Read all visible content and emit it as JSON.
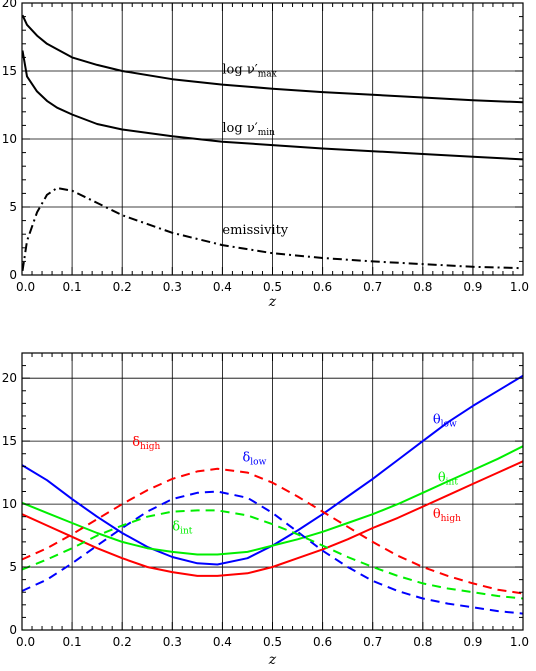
{
  "chart_data": [
    {
      "type": "line",
      "xlabel": "z",
      "xlim": [
        0.0,
        1.0
      ],
      "ylim": [
        0,
        20
      ],
      "xticks": [
        "0.0",
        "0.1",
        "0.2",
        "0.3",
        "0.4",
        "0.5",
        "0.6",
        "0.7",
        "0.8",
        "0.9",
        "1.0"
      ],
      "yticks": [
        "0",
        "5",
        "10",
        "15",
        "20"
      ],
      "grid": true,
      "x": [
        0.001,
        0.01,
        0.03,
        0.05,
        0.07,
        0.1,
        0.15,
        0.2,
        0.3,
        0.4,
        0.5,
        0.6,
        0.7,
        0.8,
        0.9,
        1.0
      ],
      "series": [
        {
          "name": "log ν′max",
          "label_main": "log ν′",
          "label_sub": "max",
          "label_x": 0.4,
          "label_y": 14.8,
          "color": "#000000",
          "dash": "solid",
          "values": [
            19.1,
            18.4,
            17.6,
            17.0,
            16.6,
            16.0,
            15.45,
            15.0,
            14.4,
            14.0,
            13.7,
            13.45,
            13.25,
            13.05,
            12.85,
            12.7
          ]
        },
        {
          "name": "log ν′min",
          "label_main": "log ν′",
          "label_sub": "min",
          "label_x": 0.4,
          "label_y": 10.5,
          "color": "#000000",
          "dash": "solid",
          "values": [
            16.5,
            14.6,
            13.5,
            12.8,
            12.3,
            11.8,
            11.1,
            10.7,
            10.2,
            9.8,
            9.55,
            9.3,
            9.1,
            8.9,
            8.7,
            8.5
          ]
        },
        {
          "name": "emissivity",
          "label_main": "emissivity",
          "label_sub": "",
          "label_x": 0.4,
          "label_y": 3.0,
          "color": "#000000",
          "dash": "dashdot",
          "values": [
            0.3,
            2.5,
            4.6,
            5.9,
            6.4,
            6.2,
            5.3,
            4.4,
            3.1,
            2.2,
            1.6,
            1.25,
            1.0,
            0.8,
            0.6,
            0.5
          ]
        }
      ]
    },
    {
      "type": "line",
      "xlabel": "z",
      "xlim": [
        0.0,
        1.0
      ],
      "ylim": [
        0,
        22
      ],
      "xticks": [
        "0.0",
        "0.1",
        "0.2",
        "0.3",
        "0.4",
        "0.5",
        "0.6",
        "0.7",
        "0.8",
        "0.9",
        "1.0"
      ],
      "yticks": [
        "0",
        "5",
        "10",
        "15",
        "20"
      ],
      "grid": true,
      "x": [
        0.0,
        0.05,
        0.1,
        0.15,
        0.2,
        0.25,
        0.3,
        0.35,
        0.39,
        0.45,
        0.5,
        0.55,
        0.6,
        0.65,
        0.7,
        0.75,
        0.8,
        0.85,
        0.9,
        0.95,
        1.0
      ],
      "series": [
        {
          "name": "θlow",
          "label_main": "θ",
          "label_sub": "low",
          "label_x": 0.82,
          "label_y": 16.4,
          "color": "#0000ff",
          "dash": "solid",
          "values": [
            13.1,
            11.9,
            10.4,
            9.0,
            7.7,
            6.6,
            5.8,
            5.3,
            5.2,
            5.7,
            6.7,
            7.9,
            9.2,
            10.6,
            12.0,
            13.5,
            15.0,
            16.5,
            17.8,
            19.0,
            20.2
          ]
        },
        {
          "name": "θint",
          "label_main": "θ",
          "label_sub": "int",
          "label_x": 0.83,
          "label_y": 11.8,
          "color": "#00ee00",
          "dash": "solid",
          "values": [
            10.1,
            9.3,
            8.5,
            7.7,
            7.0,
            6.5,
            6.2,
            6.0,
            6.0,
            6.2,
            6.7,
            7.2,
            7.8,
            8.5,
            9.2,
            10.0,
            10.9,
            11.8,
            12.7,
            13.6,
            14.6
          ]
        },
        {
          "name": "θhigh",
          "label_main": "θ",
          "label_sub": "high",
          "label_x": 0.82,
          "label_y": 8.9,
          "color": "#ff0000",
          "dash": "solid",
          "values": [
            9.2,
            8.3,
            7.4,
            6.5,
            5.7,
            5.0,
            4.6,
            4.3,
            4.3,
            4.5,
            5.0,
            5.7,
            6.4,
            7.2,
            8.1,
            8.9,
            9.8,
            10.7,
            11.6,
            12.5,
            13.4
          ]
        },
        {
          "name": "δhigh",
          "label_main": "δ",
          "label_sub": "high",
          "label_x": 0.22,
          "label_y": 14.6,
          "color": "#ff0000",
          "dash": "dashed",
          "values": [
            5.6,
            6.5,
            7.6,
            8.8,
            10.0,
            11.1,
            12.0,
            12.6,
            12.8,
            12.5,
            11.7,
            10.6,
            9.4,
            8.2,
            7.0,
            5.9,
            5.0,
            4.3,
            3.7,
            3.2,
            2.9
          ]
        },
        {
          "name": "δlow",
          "label_main": "δ",
          "label_sub": "low",
          "label_x": 0.44,
          "label_y": 13.4,
          "color": "#0000ff",
          "dash": "dashed",
          "values": [
            3.1,
            4.0,
            5.3,
            6.7,
            8.1,
            9.4,
            10.4,
            10.9,
            11.0,
            10.5,
            9.3,
            7.8,
            6.3,
            5.0,
            3.9,
            3.1,
            2.5,
            2.1,
            1.8,
            1.5,
            1.3
          ]
        },
        {
          "name": "δint",
          "label_main": "δ",
          "label_sub": "int",
          "label_x": 0.3,
          "label_y": 7.9,
          "color": "#00ee00",
          "dash": "dashed",
          "values": [
            4.8,
            5.6,
            6.5,
            7.5,
            8.3,
            9.0,
            9.4,
            9.5,
            9.5,
            9.1,
            8.4,
            7.6,
            6.7,
            5.8,
            5.0,
            4.3,
            3.7,
            3.3,
            3.0,
            2.7,
            2.5
          ]
        }
      ]
    }
  ]
}
